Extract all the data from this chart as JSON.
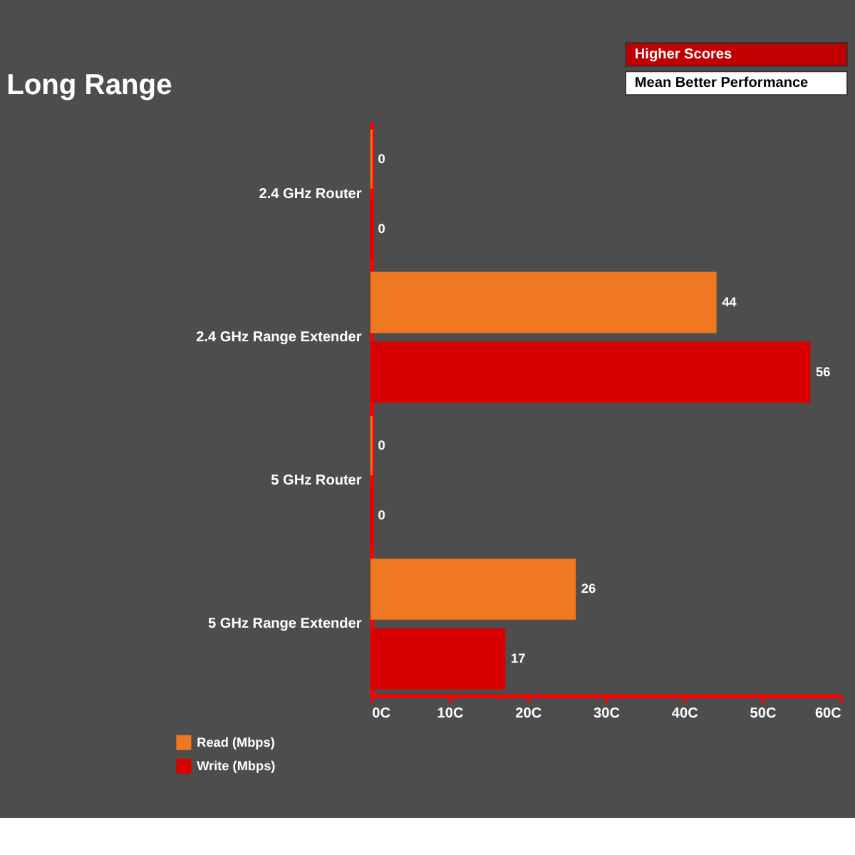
{
  "chart_data": {
    "type": "bar",
    "orientation": "horizontal",
    "title": "Long Range",
    "annotations": [
      "Higher Scores",
      "Mean Better Performance"
    ],
    "categories": [
      "2.4 GHz Router",
      "2.4 GHz Range Extender",
      "5 GHz Router",
      "5 GHz Range Extender"
    ],
    "series": [
      {
        "name": "Read (Mbps)",
        "color": "#f07820",
        "values": [
          0,
          44,
          0,
          26
        ]
      },
      {
        "name": "Write (Mbps)",
        "color": "#d80000",
        "values": [
          0,
          56,
          0,
          17
        ]
      }
    ],
    "xlim": [
      0,
      60
    ],
    "xticks": [
      {
        "value": 0,
        "label": "0C"
      },
      {
        "value": 10,
        "label": "10C"
      },
      {
        "value": 20,
        "label": "20C"
      },
      {
        "value": 30,
        "label": "30C"
      },
      {
        "value": 40,
        "label": "40C"
      },
      {
        "value": 50,
        "label": "50C"
      },
      {
        "value": 60,
        "label": "60C"
      }
    ],
    "data_labels": true,
    "grid": false,
    "legend": "bottom left"
  }
}
